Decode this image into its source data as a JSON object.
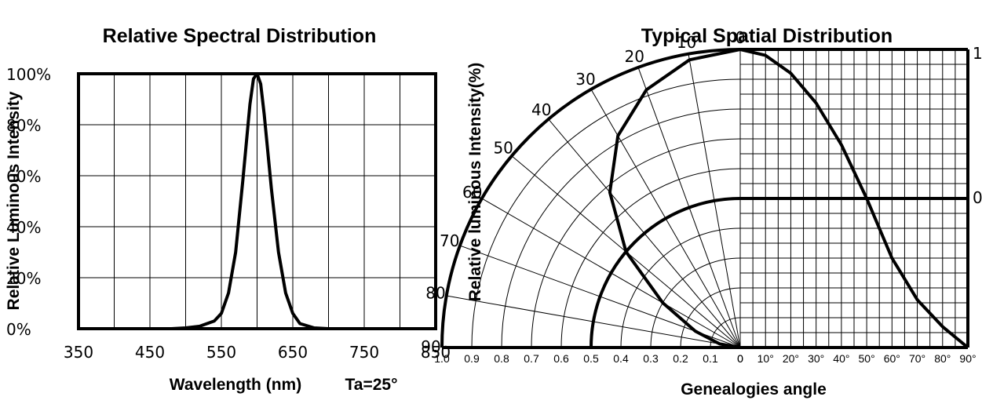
{
  "chart_data": [
    {
      "type": "line",
      "title": "Relative Spectral Distribution",
      "xlabel": "Wavelength  (nm)",
      "ylabel": "Relative Luminous Intensity",
      "note": "Ta=25°",
      "x_ticks": [
        "350",
        "450",
        "550",
        "650",
        "750",
        "850"
      ],
      "y_ticks": [
        "0%",
        "20%",
        "40%",
        "60%",
        "80%",
        "100%"
      ],
      "xlim": [
        350,
        850
      ],
      "ylim": [
        0,
        100
      ],
      "grid": true,
      "series": [
        {
          "x": [
            350,
            480,
            500,
            520,
            540,
            550,
            560,
            570,
            580,
            590,
            595,
            600,
            605,
            610,
            620,
            630,
            640,
            650,
            660,
            680,
            700,
            850
          ],
          "y": [
            0,
            0,
            0.3,
            1,
            3,
            6,
            14,
            30,
            58,
            88,
            98,
            100,
            96,
            84,
            55,
            30,
            14,
            6,
            2,
            0.3,
            0,
            0
          ]
        }
      ]
    },
    {
      "type": "line",
      "title": "Typical Spatial Distribution",
      "xlabel": "Genealogies angle",
      "ylabel": "Relative luminous Intensity(%)",
      "radial_ticks": [
        "1.0",
        "0.9",
        "0.8",
        "0.7",
        "0.6",
        "0.5",
        "0.4",
        "0.3",
        "0.2",
        "0.1",
        "0"
      ],
      "angle_ticks": [
        "0",
        "10",
        "20",
        "30",
        "40",
        "50",
        "60",
        "70",
        "80",
        "90"
      ],
      "x_ticks": [
        "0",
        "10°",
        "20°",
        "30°",
        "40°",
        "50°",
        "60°",
        "70°",
        "80°",
        "90°"
      ],
      "y_ticks_right": [
        "1",
        "0"
      ],
      "grid": true,
      "series": [
        {
          "x": [
            0,
            10,
            20,
            30,
            40,
            50,
            60,
            70,
            80,
            90
          ],
          "y": [
            1.0,
            0.98,
            0.92,
            0.82,
            0.68,
            0.5,
            0.3,
            0.16,
            0.07,
            0.0
          ]
        }
      ]
    }
  ]
}
